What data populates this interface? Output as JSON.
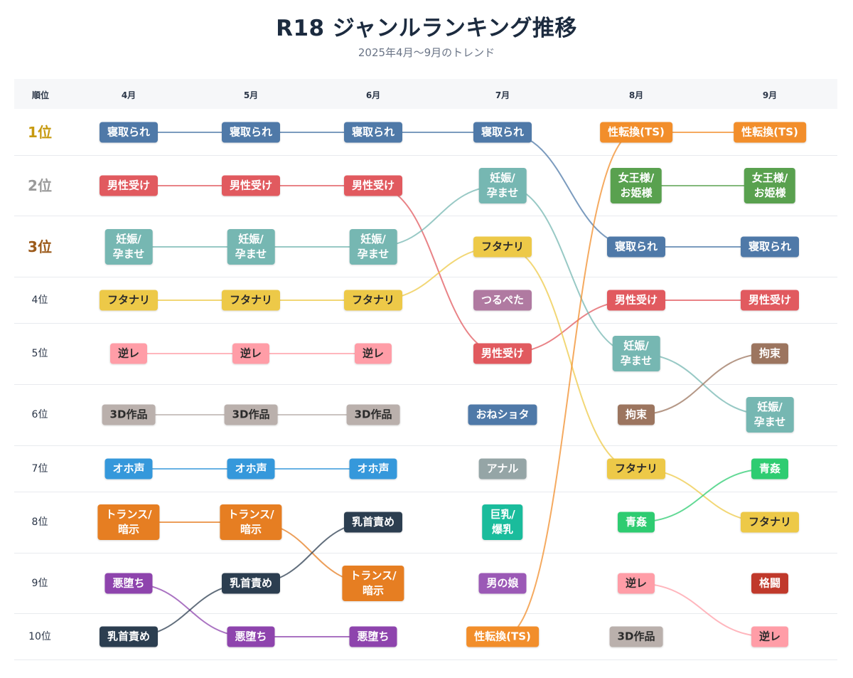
{
  "title": "R18 ジャンルランキング推移",
  "subtitle": "2025年4月〜9月のトレンド",
  "table_header": {
    "rank_label": "順位"
  },
  "chart_data": {
    "type": "bump",
    "months": [
      "4月",
      "5月",
      "6月",
      "7月",
      "8月",
      "9月"
    ],
    "rank_labels": [
      "1位",
      "2位",
      "3位",
      "4位",
      "5位",
      "6位",
      "7位",
      "8位",
      "9位",
      "10位"
    ],
    "genres": [
      {
        "name": "寝取られ",
        "color": "#4f79a8",
        "ranks": [
          1,
          1,
          1,
          1,
          3,
          3
        ]
      },
      {
        "name": "男性受け",
        "color": "#e15a5f",
        "ranks": [
          2,
          2,
          2,
          5,
          4,
          4
        ]
      },
      {
        "name": "妊娠/\n孕ませ",
        "color": "#76b7b2",
        "ranks": [
          3,
          3,
          3,
          2,
          5,
          6
        ]
      },
      {
        "name": "フタナリ",
        "color": "#edc948",
        "ranks": [
          4,
          4,
          4,
          3,
          7,
          8
        ]
      },
      {
        "name": "逆レ",
        "color": "#ff9da7",
        "ranks": [
          5,
          5,
          5,
          null,
          9,
          10
        ]
      },
      {
        "name": "3D作品",
        "color": "#bab0ac",
        "ranks": [
          6,
          6,
          6,
          null,
          10,
          null
        ]
      },
      {
        "name": "オホ声",
        "color": "#3598db",
        "ranks": [
          7,
          7,
          7,
          null,
          null,
          null
        ]
      },
      {
        "name": "トランス/\n暗示",
        "color": "#e67e22",
        "ranks": [
          8,
          8,
          9,
          null,
          null,
          null
        ]
      },
      {
        "name": "悪堕ち",
        "color": "#8e44ad",
        "ranks": [
          9,
          10,
          10,
          null,
          null,
          null
        ]
      },
      {
        "name": "乳首責め",
        "color": "#2c3e50",
        "ranks": [
          10,
          9,
          8,
          null,
          null,
          null
        ]
      },
      {
        "name": "つるぺた",
        "color": "#b07aa1",
        "ranks": [
          null,
          null,
          null,
          4,
          null,
          null
        ]
      },
      {
        "name": "おねショタ",
        "color": "#4f79a8",
        "ranks": [
          null,
          null,
          null,
          6,
          null,
          null
        ]
      },
      {
        "name": "アナル",
        "color": "#95a5a6",
        "ranks": [
          null,
          null,
          null,
          7,
          null,
          null
        ]
      },
      {
        "name": "巨乳/\n爆乳",
        "color": "#1abc9c",
        "ranks": [
          null,
          null,
          null,
          8,
          null,
          null
        ]
      },
      {
        "name": "男の娘",
        "color": "#9b59b6",
        "ranks": [
          null,
          null,
          null,
          9,
          null,
          null
        ]
      },
      {
        "name": "性転換(TS)",
        "color": "#f28e2b",
        "ranks": [
          null,
          null,
          null,
          10,
          1,
          1
        ]
      },
      {
        "name": "女王様/\nお姫様",
        "color": "#59a14f",
        "ranks": [
          null,
          null,
          null,
          null,
          2,
          2
        ]
      },
      {
        "name": "拘束",
        "color": "#9c755f",
        "ranks": [
          null,
          null,
          null,
          null,
          6,
          5
        ]
      },
      {
        "name": "青姦",
        "color": "#2ecc71",
        "ranks": [
          null,
          null,
          null,
          null,
          8,
          7
        ]
      },
      {
        "name": "格闘",
        "color": "#c0392b",
        "ranks": [
          null,
          null,
          null,
          null,
          null,
          9
        ]
      }
    ]
  }
}
